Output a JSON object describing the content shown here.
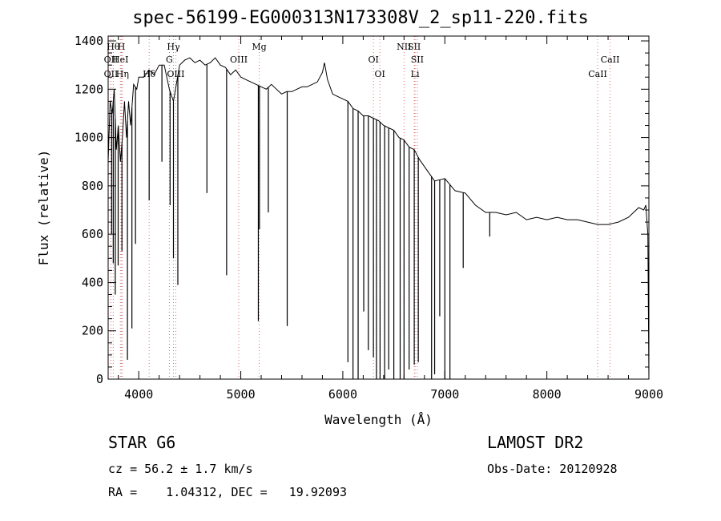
{
  "chart_data": {
    "type": "line",
    "title": "spec-56199-EG000313N173308V_2_sp11-220.fits",
    "xlabel": "Wavelength (Å)",
    "ylabel": "Flux (relative)",
    "xlim": [
      3700,
      9000
    ],
    "ylim": [
      0,
      1420
    ],
    "xticks": [
      4000,
      5000,
      6000,
      7000,
      8000,
      9000
    ],
    "yticks": [
      0,
      200,
      400,
      600,
      800,
      1000,
      1200,
      1400
    ],
    "series": [
      {
        "x": [
          3700,
          3720,
          3740,
          3760,
          3780,
          3800,
          3820,
          3840,
          3860,
          3880,
          3900,
          3920,
          3950,
          3980,
          4000,
          4050,
          4100,
          4150,
          4200,
          4250,
          4300,
          4340,
          4400,
          4450,
          4500,
          4550,
          4600,
          4650,
          4700,
          4750,
          4800,
          4850,
          4900,
          4950,
          5000,
          5050,
          5100,
          5150,
          5200,
          5250,
          5300,
          5350,
          5400,
          5450,
          5500,
          5550,
          5600,
          5650,
          5700,
          5750,
          5800,
          5820,
          5850,
          5900,
          5950,
          6000,
          6050,
          6100,
          6150,
          6200,
          6250,
          6300,
          6350,
          6400,
          6450,
          6500,
          6550,
          6600,
          6650,
          6700,
          6750,
          6800,
          6900,
          7000,
          7100,
          7200,
          7300,
          7400,
          7500,
          7600,
          7700,
          7800,
          7900,
          8000,
          8100,
          8200,
          8300,
          8400,
          8500,
          8600,
          8700,
          8800,
          8850,
          8900,
          8950,
          8970,
          8990,
          9000
        ],
        "y": [
          900,
          1150,
          1100,
          1200,
          950,
          1050,
          900,
          1000,
          1150,
          1000,
          1150,
          1050,
          1220,
          1200,
          1250,
          1250,
          1280,
          1260,
          1300,
          1300,
          1200,
          1150,
          1300,
          1320,
          1330,
          1310,
          1320,
          1300,
          1310,
          1330,
          1300,
          1290,
          1260,
          1280,
          1250,
          1240,
          1230,
          1220,
          1210,
          1200,
          1220,
          1200,
          1180,
          1190,
          1190,
          1200,
          1210,
          1210,
          1220,
          1230,
          1270,
          1310,
          1240,
          1180,
          1170,
          1160,
          1150,
          1120,
          1110,
          1090,
          1090,
          1080,
          1070,
          1050,
          1040,
          1030,
          1000,
          990,
          960,
          950,
          910,
          880,
          820,
          830,
          780,
          770,
          720,
          690,
          690,
          680,
          690,
          660,
          670,
          660,
          670,
          660,
          660,
          650,
          640,
          640,
          650,
          670,
          690,
          710,
          700,
          720,
          600,
          0
        ]
      }
    ],
    "absorption_lines": [
      {
        "x": 3734,
        "depth": 600
      },
      {
        "x": 3750,
        "depth": 480
      },
      {
        "x": 3770,
        "depth": 350
      },
      {
        "x": 3798,
        "depth": 470
      },
      {
        "x": 3835,
        "depth": 530
      },
      {
        "x": 3889,
        "depth": 80
      },
      {
        "x": 3933,
        "depth": 210
      },
      {
        "x": 3968,
        "depth": 560
      },
      {
        "x": 4102,
        "depth": 740
      },
      {
        "x": 4227,
        "depth": 900
      },
      {
        "x": 4307,
        "depth": 720
      },
      {
        "x": 4340,
        "depth": 500
      },
      {
        "x": 4383,
        "depth": 390
      },
      {
        "x": 4668,
        "depth": 770
      },
      {
        "x": 4861,
        "depth": 430
      },
      {
        "x": 5172,
        "depth": 240
      },
      {
        "x": 5183,
        "depth": 620
      },
      {
        "x": 5270,
        "depth": 690
      },
      {
        "x": 5455,
        "depth": 220
      },
      {
        "x": 6050,
        "depth": 70
      },
      {
        "x": 6100,
        "depth": 0
      },
      {
        "x": 6150,
        "depth": 0
      },
      {
        "x": 6205,
        "depth": 280
      },
      {
        "x": 6250,
        "depth": 120
      },
      {
        "x": 6300,
        "depth": 90
      },
      {
        "x": 6330,
        "depth": 0
      },
      {
        "x": 6365,
        "depth": 0
      },
      {
        "x": 6410,
        "depth": 0
      },
      {
        "x": 6450,
        "depth": 40
      },
      {
        "x": 6500,
        "depth": 0
      },
      {
        "x": 6562,
        "depth": 0
      },
      {
        "x": 6600,
        "depth": 0
      },
      {
        "x": 6650,
        "depth": 40
      },
      {
        "x": 6700,
        "depth": 60
      },
      {
        "x": 6740,
        "depth": 70
      },
      {
        "x": 6870,
        "depth": 0
      },
      {
        "x": 6900,
        "depth": 20
      },
      {
        "x": 6950,
        "depth": 260
      },
      {
        "x": 7000,
        "depth": 0
      },
      {
        "x": 7050,
        "depth": 0
      },
      {
        "x": 7180,
        "depth": 460
      },
      {
        "x": 7440,
        "depth": 590
      }
    ],
    "line_markers": [
      {
        "x": 3750,
        "label": "Hθ",
        "row": 0
      },
      {
        "x": 3830,
        "label": "H",
        "row": 0
      },
      {
        "x": 4340,
        "label": "Hγ",
        "row": 0
      },
      {
        "x": 5180,
        "label": "Mg",
        "row": 0
      },
      {
        "x": 6600,
        "label": "NII",
        "row": 0
      },
      {
        "x": 6700,
        "label": "SII",
        "row": 0
      },
      {
        "x": 3727,
        "label": "OII",
        "row": 1
      },
      {
        "x": 3820,
        "label": "HeI",
        "row": 1
      },
      {
        "x": 4300,
        "label": "G",
        "row": 1
      },
      {
        "x": 4980,
        "label": "OIII",
        "row": 1
      },
      {
        "x": 6300,
        "label": "OI",
        "row": 1
      },
      {
        "x": 6730,
        "label": "SII",
        "row": 1
      },
      {
        "x": 8620,
        "label": "CaII",
        "row": 1
      },
      {
        "x": 3727,
        "label": "OII",
        "row": 2
      },
      {
        "x": 3840,
        "label": "Hη",
        "row": 2
      },
      {
        "x": 4102,
        "label": "Hδ",
        "row": 2
      },
      {
        "x": 4363,
        "label": "OIII",
        "row": 2
      },
      {
        "x": 6363,
        "label": "OI",
        "row": 2
      },
      {
        "x": 6708,
        "label": "Li",
        "row": 2
      },
      {
        "x": 8498,
        "label": "CaII",
        "row": 2
      }
    ],
    "grid": false,
    "legend": "none"
  },
  "info": {
    "object": "STAR    G6",
    "survey": "LAMOST DR2",
    "cz": "cz = 56.2 ± 1.7 km/s",
    "obsdate": "Obs-Date: 20120928",
    "radec": "RA =    1.04312, DEC =   19.92093"
  },
  "colors": {
    "line": "#000000",
    "marker": "#e07070"
  }
}
